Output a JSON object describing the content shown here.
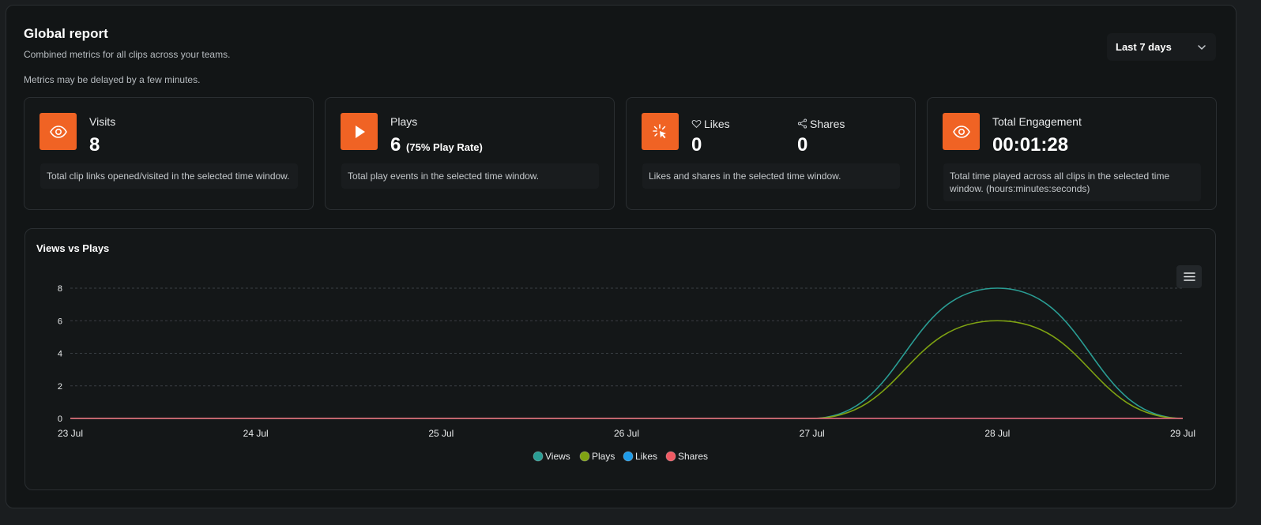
{
  "header": {
    "title": "Global report",
    "subtitle": "Combined metrics for all clips across your teams.",
    "note": "Metrics may be delayed by a few minutes.",
    "range": "Last 7 days"
  },
  "cards": {
    "visits": {
      "label": "Visits",
      "value": "8",
      "desc": "Total clip links opened/visited in the selected time window.",
      "icon": "eye-icon"
    },
    "plays": {
      "label": "Plays",
      "value": "6",
      "rate": "(75% Play Rate)",
      "desc": "Total play events in the selected time window.",
      "icon": "play-icon"
    },
    "social": {
      "likes_label": "Likes",
      "likes_value": "0",
      "shares_label": "Shares",
      "shares_value": "0",
      "desc": "Likes and shares in the selected time window.",
      "icon": "cursor-click-icon"
    },
    "engagement": {
      "label": "Total Engagement",
      "value": "00:01:28",
      "desc": "Total time played across all clips in the selected time window. (hours:minutes:seconds)",
      "icon": "eye-icon"
    }
  },
  "colors": {
    "accent": "#f06324",
    "views": "#2a9d94",
    "plays": "#7fa312",
    "likes": "#1e9be8",
    "shares": "#ef5a63"
  },
  "chart_title": "Views vs Plays",
  "chart_data": {
    "type": "area",
    "x": [
      "23 Jul",
      "24 Jul",
      "25 Jul",
      "26 Jul",
      "27 Jul",
      "28 Jul",
      "29 Jul"
    ],
    "ylim": [
      0,
      8
    ],
    "yticks": [
      "0",
      "2",
      "4",
      "6",
      "8"
    ],
    "grid": true,
    "legend": "bottom",
    "series": [
      {
        "name": "Views",
        "values": [
          0,
          0,
          0,
          0,
          0,
          8,
          0
        ]
      },
      {
        "name": "Plays",
        "values": [
          0,
          0,
          0,
          0,
          0,
          6,
          0
        ]
      },
      {
        "name": "Likes",
        "values": [
          0,
          0,
          0,
          0,
          0,
          0,
          0
        ]
      },
      {
        "name": "Shares",
        "values": [
          0,
          0,
          0,
          0,
          0,
          0,
          0
        ]
      }
    ]
  }
}
